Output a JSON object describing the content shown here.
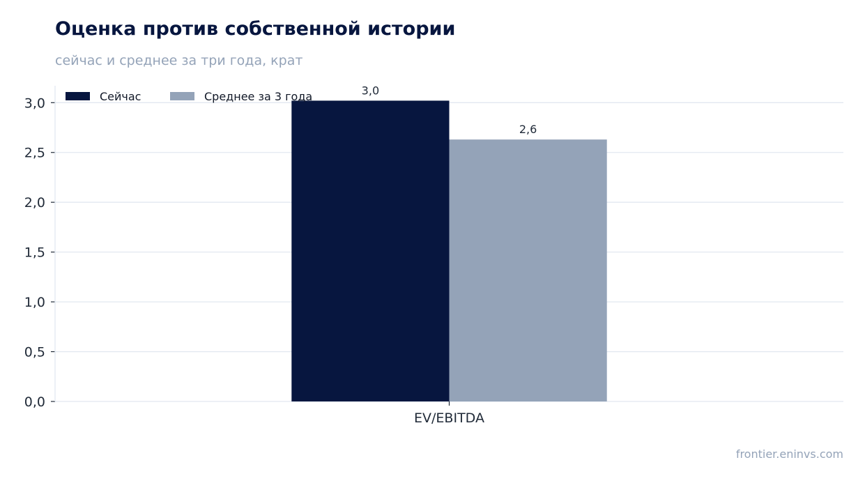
{
  "header": {
    "title": "Оценка против собственной истории",
    "subtitle": "сейчас и среднее за три года, крат"
  },
  "footer": {
    "source": "frontier.eninvs.com"
  },
  "colors": {
    "now": "#07163f",
    "avg": "#94a3b8",
    "grid": "#e2e8f0",
    "axis": "#1f2937"
  },
  "chart_data": {
    "type": "bar",
    "categories": [
      "EV/EBITDA"
    ],
    "series": [
      {
        "name": "Сейчас",
        "values": [
          3.02
        ],
        "label": "3,0"
      },
      {
        "name": "Среднее за 3 года",
        "values": [
          2.63
        ],
        "label": "2,6"
      }
    ],
    "ylim": [
      0,
      3.17
    ],
    "yticks": [
      0,
      0.5,
      1.0,
      1.5,
      2.0,
      2.5,
      3.0
    ],
    "ytick_labels": [
      "0,0",
      "0,5",
      "1,0",
      "1,5",
      "2,0",
      "2,5",
      "3,0"
    ],
    "grid": true,
    "legend": "top-left"
  }
}
